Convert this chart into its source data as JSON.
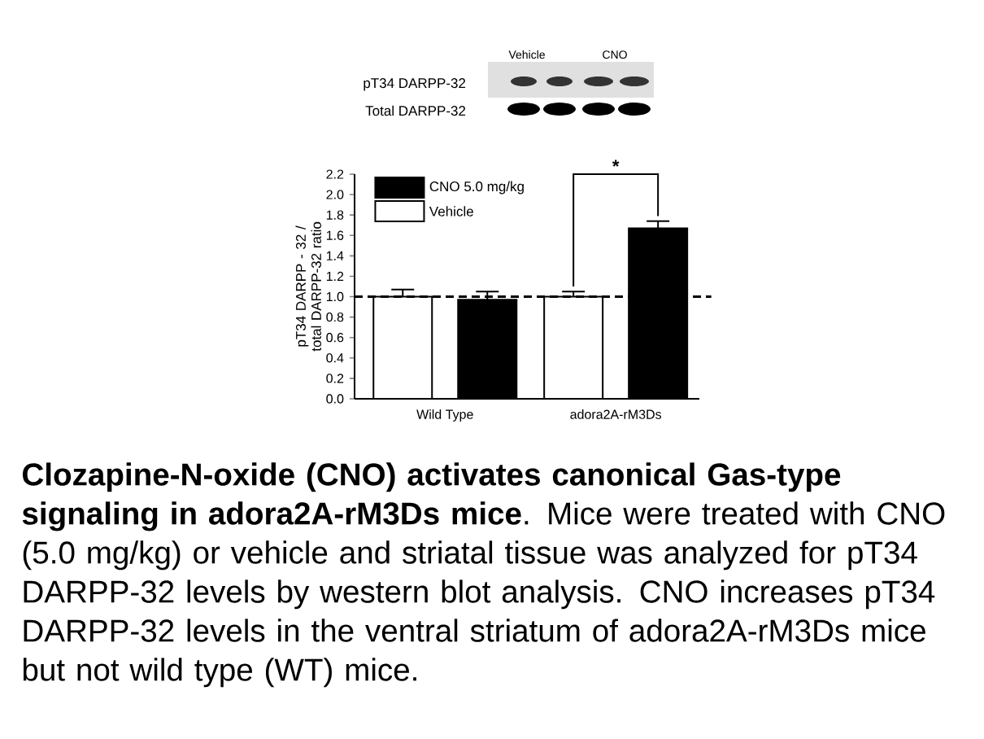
{
  "chart_data": {
    "type": "bar",
    "ylabel": "pT34 DARPP - 32 / total DARPP-32 ratio",
    "categories": [
      "Wild Type",
      "adora2A-rM3Ds"
    ],
    "series": [
      {
        "name": "Vehicle",
        "color": "#ffffff",
        "values": [
          1.0,
          1.0
        ],
        "errors": [
          0.07,
          0.05
        ]
      },
      {
        "name": "CNO 5.0 mg/kg",
        "color": "#000000",
        "values": [
          0.97,
          1.67
        ],
        "errors": [
          0.08,
          0.07
        ]
      }
    ],
    "ylim": [
      0,
      2.2
    ],
    "yticks": [
      {
        "value": 0,
        "label": "0.0"
      },
      {
        "value": 0.2,
        "label": "0.2"
      },
      {
        "value": 0.4,
        "label": "0.4"
      },
      {
        "value": 0.6,
        "label": "0.6"
      },
      {
        "value": 0.8,
        "label": "0.8"
      },
      {
        "value": 1.0,
        "label": "1.0"
      },
      {
        "value": 1.2,
        "label": "1.2"
      },
      {
        "value": 1.4,
        "label": "1.4"
      },
      {
        "value": 1.6,
        "label": "1.6"
      },
      {
        "value": 1.8,
        "label": "1.8"
      },
      {
        "value": 2.0,
        "label": "2.0"
      },
      {
        "value": 2.2,
        "label": "2.2"
      }
    ],
    "ref_lines": [
      {
        "axis": "y",
        "value": 1.0,
        "color": "#000000",
        "line_style": "dashed"
      }
    ],
    "legend": "top left",
    "grid": false,
    "annotations": [
      "*",
      "Vehicle",
      "CNO",
      "pT34 DARPP-32",
      "Total DARPP-32",
      "**Clozapine-N-oxide (CNO) activates canonical Gas-type signaling in adora2A-rM3Ds mice**. Mice were treated with CNO (5.0 mg/kg) or vehicle and striatal tissue was analyzed for pT34 DARPP-32 levels by western blot analysis. CNO increases pT34 DARPP-32 levels in the ventral striatum of adora2A-rM3Ds mice but not wild type (WT) mice."
    ]
  }
}
